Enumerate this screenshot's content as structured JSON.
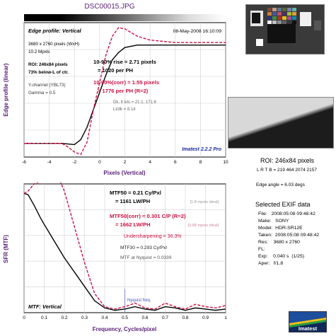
{
  "title": "DSC00015.JPG",
  "top_chart": {
    "header": "Edge profile: Vertical",
    "date": "08-May-2008 16:10:09",
    "info": [
      "3680 x 2760 pixels (WxH)",
      "10.2 Mpxls"
    ],
    "roi": [
      "ROI: 246x84 pixels",
      "73% below-L of ctr."
    ],
    "channel": [
      "Y-channel (YBL73)",
      "Gamma = 0.5"
    ],
    "rise_10_90": "10-90% rise = 2.71 pixels",
    "rise_per_ph": "= 1020 per PH",
    "corr_10_90": "10-90%(corr) = 1.55 pixels",
    "corr_per_ph": "= 1776 per PH  (R=2)",
    "dk_lvls": "Dk, lt lvls = 21.1, 171.6",
    "lt_dk": "Lt/dk = 8.14",
    "brand": "Imatest 2.2.2 Pro",
    "ylabel": "Edge profile (linear)",
    "xlabel": "Pixels (Vertical)"
  },
  "bottom_chart": {
    "mtf50": "MTF50 = 0.21 Cy/Pxl",
    "mtf50_lwph": "= 1161 LW/PH",
    "mtf50_ideal": "[1.8 mpxls ideal]",
    "mtf50_corr": "MTF50(corr) = 0.301 C/P  (R=2)",
    "mtf50_corr_lwph": "= 1662 LW/PH",
    "mtf50_corr_ideal": "[3.68 mpxls ideal]",
    "undersharpening": "Undersharpening = 36.3%",
    "mtf30": "MTF30 = 0.293 Cy/Pxl",
    "mtf_nyquist": "MTF at Nyquist = 0.0339",
    "nyquist_label": "Nyquist freq.",
    "footer": "MTF: Vertical",
    "ylabel": "SFR (MTF)",
    "xlabel": "Frequency, Cycles/pixel"
  },
  "roi_panel": {
    "title": "ROI: 246x84 pixels",
    "lrtb": "L R T B = 219 464  2074 2157",
    "edge_angle": "Edge angle = 6.03 degs"
  },
  "exif": {
    "title": "Selected EXIF data",
    "rows": [
      "File:   2008:05:08 09:48:42",
      "Make:   SONY",
      "Model:  HDR-SR12E",
      "Taken:  2008:05:08 09:48:42",
      "Res:    3680 x 2760",
      "FL:",
      "Exp:    0.040 s  (1/25)",
      "Aper:   f/1.8"
    ]
  },
  "logo_text": "Imatest",
  "chart_data": [
    {
      "type": "line",
      "name": "Edge profile",
      "x_range": [
        -6,
        10
      ],
      "y_range": [
        0,
        1.08
      ],
      "x_ticks": [
        -6,
        -4,
        -2,
        0,
        2,
        4,
        6,
        8,
        10
      ],
      "grid": true,
      "series": [
        {
          "color": "#000000",
          "x": [
            -6,
            -4,
            -3,
            -2.5,
            -2,
            -1.5,
            -1,
            -0.5,
            0,
            0.5,
            1,
            1.5,
            2,
            3,
            4,
            5,
            6,
            8,
            10
          ],
          "y": [
            0.11,
            0.11,
            0.11,
            0.105,
            0.1,
            0.14,
            0.24,
            0.38,
            0.52,
            0.66,
            0.78,
            0.84,
            0.88,
            0.9,
            0.9,
            0.9,
            0.9,
            0.9,
            0.9
          ]
        },
        {
          "color": "#cc1144",
          "dash": true,
          "x": [
            -6,
            -4,
            -3,
            -2.5,
            -2,
            -1.5,
            -1,
            -0.5,
            0,
            0.5,
            1,
            1.5,
            2,
            2.5,
            3,
            4,
            5,
            6,
            8,
            10
          ],
          "y": [
            0.11,
            0.11,
            0.11,
            0.08,
            0.04,
            0.02,
            0.12,
            0.38,
            0.6,
            0.82,
            0.97,
            1.04,
            1.03,
            1.0,
            0.97,
            0.94,
            0.93,
            0.92,
            0.92,
            0.92
          ]
        }
      ]
    },
    {
      "type": "line",
      "name": "MTF",
      "x_range": [
        0,
        1
      ],
      "y_range": [
        0,
        1.08
      ],
      "x_ticks": [
        0,
        0.1,
        0.2,
        0.3,
        0.4,
        0.5,
        0.6,
        0.7,
        0.8,
        0.9,
        1
      ],
      "grid": true,
      "nyquist": 0.5,
      "series": [
        {
          "color": "#000000",
          "x": [
            0,
            0.02,
            0.05,
            0.08,
            0.1,
            0.15,
            0.2,
            0.25,
            0.3,
            0.35,
            0.4,
            0.45,
            0.5,
            0.55,
            0.6,
            0.65,
            0.7,
            0.75,
            0.8,
            0.85,
            0.9,
            0.95,
            1
          ],
          "y": [
            1.0,
            0.99,
            0.9,
            0.8,
            0.74,
            0.6,
            0.46,
            0.34,
            0.22,
            0.1,
            0.04,
            0.02,
            0.03,
            0.05,
            0.03,
            0.02,
            0.05,
            0.04,
            0.02,
            0.04,
            0.03,
            0.02,
            0.03
          ]
        },
        {
          "color": "#cc1144",
          "dash": true,
          "x": [
            0,
            0.02,
            0.05,
            0.08,
            0.1,
            0.15,
            0.18,
            0.2,
            0.25,
            0.3,
            0.35,
            0.4,
            0.45,
            0.5,
            0.55,
            0.6,
            0.65,
            0.7,
            0.75,
            0.8,
            0.85,
            0.9,
            0.95,
            1
          ],
          "y": [
            1.0,
            1.02,
            1.08,
            1.1,
            1.12,
            1.14,
            1.1,
            1.02,
            0.72,
            0.42,
            0.16,
            0.05,
            0.03,
            0.05,
            0.08,
            0.04,
            0.03,
            0.08,
            0.05,
            0.03,
            0.07,
            0.05,
            0.04,
            0.06
          ]
        }
      ]
    }
  ]
}
